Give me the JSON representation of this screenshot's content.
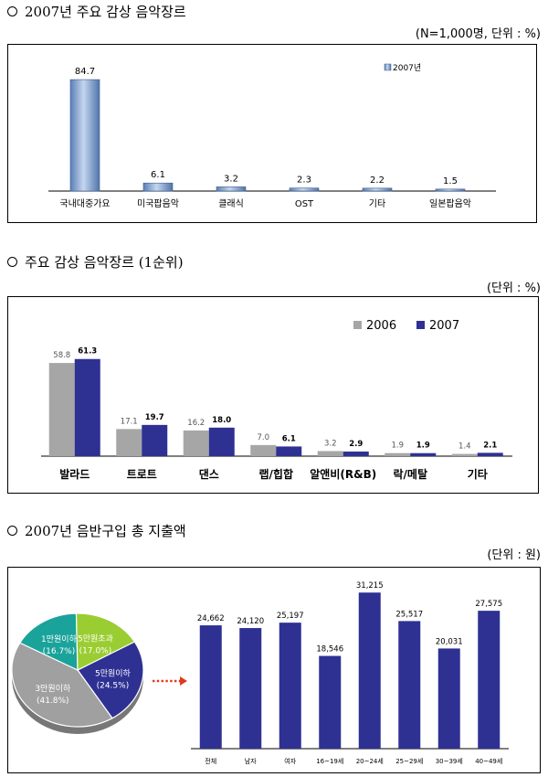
{
  "sections": [
    {
      "title": "2007년 주요 감상 음악장르",
      "unit": "(N=1,000명, 단위 : %)"
    },
    {
      "title": "주요 감상 음악장르 (1순위)",
      "unit": "(단위 : %)"
    },
    {
      "title": "2007년 음반구입 총 지출액",
      "unit": "(단위 : 원)"
    }
  ],
  "colors": {
    "blue_light": "#7f9fcc",
    "gray": "#a6a6a6",
    "navy": "#2e3192",
    "teal": "#1aa39a",
    "green": "#9acd32",
    "pie_gray": "#a0a0a0",
    "arrow": "#e03a1e"
  },
  "chart_data": [
    {
      "type": "bar",
      "categories": [
        "국내대중가요",
        "미국팝음악",
        "클래식",
        "OST",
        "기타",
        "일본팝음악"
      ],
      "series": [
        {
          "name": "2007년",
          "values": [
            84.7,
            6.1,
            3.2,
            2.3,
            2.2,
            1.5
          ]
        }
      ],
      "value_labels": [
        "84.7",
        "6.1",
        "3.2",
        "2.3",
        "2.2",
        "1.5"
      ],
      "ylim": [
        0,
        100
      ],
      "legend": "top-right"
    },
    {
      "type": "bar",
      "categories": [
        "발라드",
        "트로트",
        "댄스",
        "랩/힙합",
        "알앤비(R&B)",
        "락/메탈",
        "기타"
      ],
      "series": [
        {
          "name": "2006",
          "values": [
            58.8,
            17.1,
            16.2,
            7.0,
            3.2,
            1.9,
            1.4
          ]
        },
        {
          "name": "2007",
          "values": [
            61.3,
            19.7,
            18.0,
            6.1,
            2.9,
            1.9,
            2.1
          ]
        }
      ],
      "ylim": [
        0,
        75
      ],
      "legend": "top-right"
    },
    {
      "type": "pie",
      "slices": [
        {
          "label": "5만원이하",
          "percent_label": "(24.5%)",
          "value": 24.5
        },
        {
          "label": "3만원이하",
          "percent_label": "(41.8%)",
          "value": 41.8
        },
        {
          "label": "1만원이하",
          "percent_label": "(16.7%)",
          "value": 16.7
        },
        {
          "label": "5만원초과",
          "percent_label": "(17.0%)",
          "value": 17.0
        }
      ]
    },
    {
      "type": "bar",
      "categories": [
        "전체",
        "남자",
        "여자",
        "16~19세",
        "20~24세",
        "25~29세",
        "30~39세",
        "40~49세"
      ],
      "values": [
        24662,
        24120,
        25197,
        18546,
        31215,
        25517,
        20031,
        27575
      ],
      "value_labels": [
        "24,662",
        "24,120",
        "25,197",
        "18,546",
        "31,215",
        "25,517",
        "20,031",
        "27,575"
      ],
      "ylim": [
        0,
        34000
      ]
    }
  ]
}
